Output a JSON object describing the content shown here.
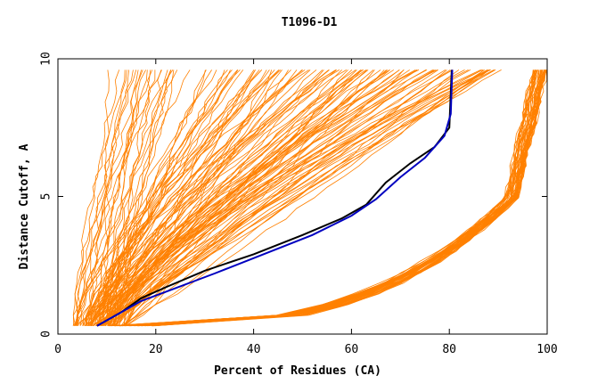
{
  "chart_data": {
    "type": "line",
    "title": "T1096-D1",
    "xlabel": "Percent of Residues (CA)",
    "ylabel": "Distance Cutoff, A",
    "xlim": [
      0,
      100
    ],
    "ylim": [
      0,
      10
    ],
    "x_ticks": [
      "0",
      "20",
      "40",
      "60",
      "80",
      "100"
    ],
    "y_ticks": [
      "0",
      "5",
      "10"
    ],
    "grid": false,
    "legend": "none",
    "colors": {
      "models": "#ff8000",
      "highlight_dark": "#000000",
      "highlight_blue": "#0000c0"
    },
    "series_groups": [
      {
        "group": "models-far",
        "count": 70,
        "color": "#ff8000",
        "x_at_y_0.3": [
          3,
          12
        ],
        "x_at_y_9.6": [
          10,
          60
        ]
      },
      {
        "group": "models-mid",
        "count": 60,
        "color": "#ff8000",
        "x_at_y_0.3": [
          5,
          14
        ],
        "x_at_y_9.6": [
          60,
          92
        ]
      },
      {
        "group": "models-close",
        "count": 45,
        "color": "#ff8000",
        "x_at_y_0.3": [
          10,
          20
        ],
        "x_at_y_9.6": [
          97,
          100
        ]
      }
    ],
    "highlight_series": [
      {
        "color": "#000000",
        "points": [
          [
            8,
            0.3
          ],
          [
            13,
            0.8
          ],
          [
            17,
            1.3
          ],
          [
            22,
            1.7
          ],
          [
            30,
            2.3
          ],
          [
            40,
            2.9
          ],
          [
            50,
            3.6
          ],
          [
            58,
            4.2
          ],
          [
            63,
            4.7
          ],
          [
            67,
            5.5
          ],
          [
            72,
            6.2
          ],
          [
            77,
            6.8
          ],
          [
            80,
            7.5
          ],
          [
            80.5,
            9.6
          ]
        ]
      },
      {
        "color": "#0000c0",
        "points": [
          [
            8,
            0.3
          ],
          [
            12,
            0.7
          ],
          [
            17,
            1.2
          ],
          [
            23,
            1.6
          ],
          [
            32,
            2.2
          ],
          [
            42,
            2.9
          ],
          [
            52,
            3.6
          ],
          [
            60,
            4.3
          ],
          [
            65,
            4.9
          ],
          [
            70,
            5.7
          ],
          [
            75,
            6.4
          ],
          [
            79,
            7.2
          ],
          [
            80.3,
            8.0
          ],
          [
            80.6,
            9.6
          ]
        ]
      }
    ]
  }
}
